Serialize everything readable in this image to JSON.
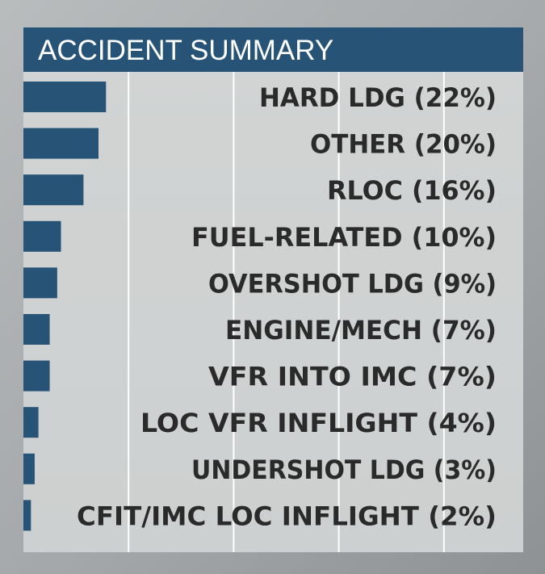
{
  "chart_data": {
    "type": "bar",
    "orientation": "horizontal",
    "title": "ACCIDENT SUMMARY",
    "unit": "%",
    "xlim": [
      0,
      40
    ],
    "grid": true,
    "legend": "none",
    "categories": [
      "HARD LDG",
      "OTHER",
      "RLOC",
      "FUEL-RELATED",
      "OVERSHOT LDG",
      "ENGINE/MECH",
      "VFR INTO IMC",
      "LOC VFR INFLIGHT",
      "UNDERSHOT LDG",
      "CFIT/IMC LOC INFLIGHT"
    ],
    "labels": [
      "HARD LDG (22%)",
      "OTHER (20%)",
      "RLOC (16%)",
      "FUEL-RELATED (10%)",
      "OVERSHOT LDG (9%)",
      "ENGINE/MECH (7%)",
      "VFR INTO IMC (7%)",
      "LOC VFR INFLIGHT (4%)",
      "UNDERSHOT LDG (3%)",
      "CFIT/IMC LOC INFLIGHT (2%)"
    ],
    "values": [
      22,
      20,
      16,
      10,
      9,
      7,
      7,
      4,
      3,
      2
    ]
  },
  "colors": {
    "bar": "#275377",
    "title_bar": "#275377",
    "label_text": "#2a2a2a",
    "grid_line": "#ffffff"
  }
}
